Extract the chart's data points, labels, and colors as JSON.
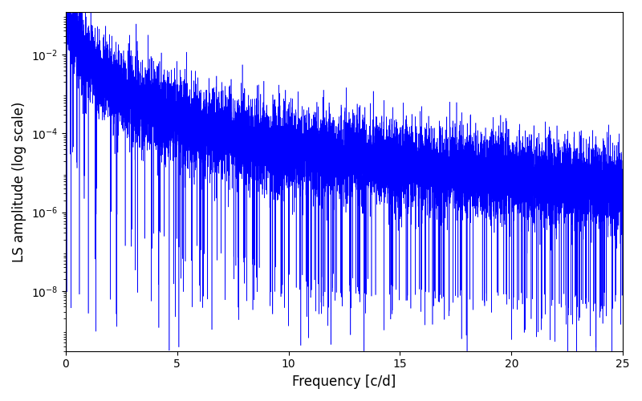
{
  "xlabel": "Frequency [c/d]",
  "ylabel": "LS amplitude (log scale)",
  "line_color": "#0000ff",
  "xlim": [
    0,
    25
  ],
  "ylim": [
    3e-10,
    0.12
  ],
  "xmin": 0.001,
  "xmax": 25.0,
  "freq_step": 0.002,
  "seed": 7,
  "background_color": "#ffffff",
  "figsize": [
    8.0,
    5.0
  ],
  "dpi": 100,
  "linewidth": 0.4
}
